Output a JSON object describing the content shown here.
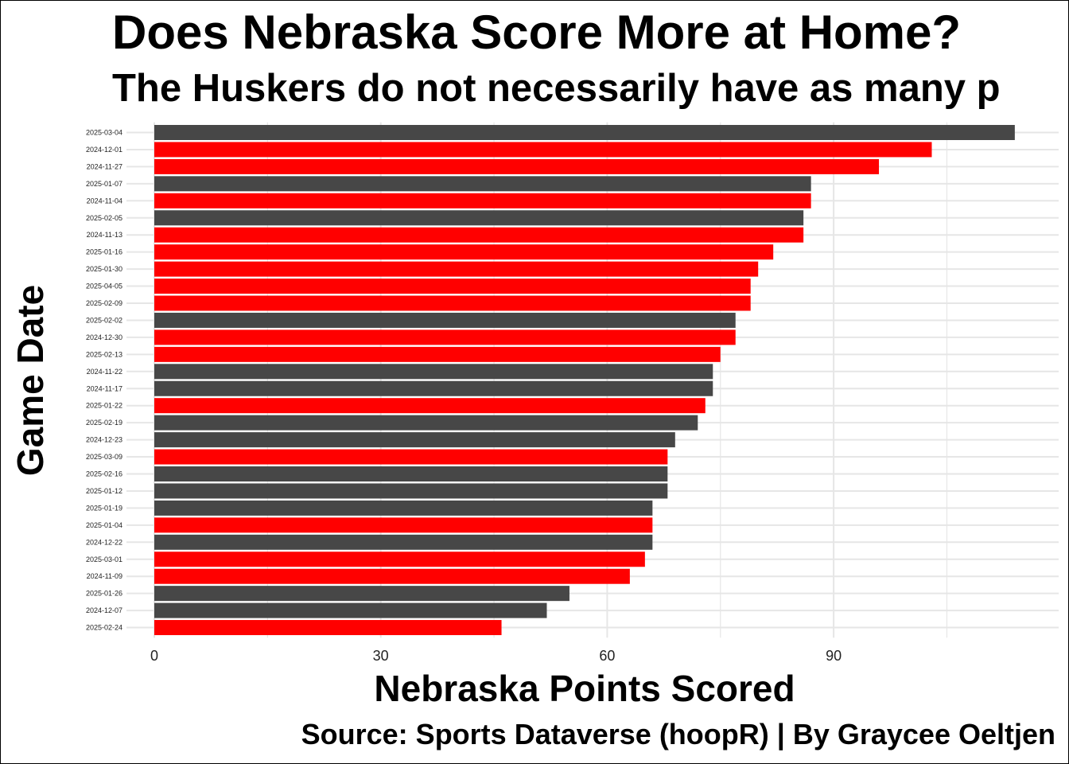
{
  "chart_data": {
    "type": "bar",
    "orientation": "horizontal",
    "title": "Does Nebraska Score More at Home?",
    "subtitle": "The Huskers do not necessarily have as many p",
    "xlabel": "Nebraska Points Scored",
    "ylabel": "Game Date",
    "caption": "Source: Sports Dataverse (hoopR) | By Graycee Oeltjen",
    "xlim": [
      0,
      119
    ],
    "xticks": [
      0,
      30,
      60,
      90
    ],
    "grid": true,
    "legend": "none",
    "colors": {
      "red": "#ff0000",
      "gray": "#474747"
    },
    "categories": [
      "2025-03-04",
      "2024-12-01",
      "2024-11-27",
      "2025-01-07",
      "2024-11-04",
      "2025-02-05",
      "2024-11-13",
      "2025-01-16",
      "2025-01-30",
      "2025-04-05",
      "2025-02-09",
      "2025-02-02",
      "2024-12-30",
      "2025-02-13",
      "2024-11-22",
      "2024-11-17",
      "2025-01-22",
      "2025-02-19",
      "2024-12-23",
      "2025-03-09",
      "2025-02-16",
      "2025-01-12",
      "2025-01-19",
      "2025-01-04",
      "2024-12-22",
      "2025-03-01",
      "2024-11-09",
      "2025-01-26",
      "2024-12-07",
      "2025-02-24"
    ],
    "values": [
      114,
      103,
      96,
      87,
      87,
      86,
      86,
      82,
      80,
      79,
      79,
      77,
      77,
      75,
      74,
      74,
      73,
      72,
      69,
      68,
      68,
      68,
      66,
      66,
      66,
      65,
      63,
      55,
      52,
      46
    ],
    "bar_colors": [
      "gray",
      "red",
      "red",
      "gray",
      "red",
      "gray",
      "red",
      "red",
      "red",
      "red",
      "red",
      "gray",
      "red",
      "red",
      "gray",
      "gray",
      "red",
      "gray",
      "gray",
      "red",
      "gray",
      "gray",
      "gray",
      "red",
      "gray",
      "red",
      "red",
      "gray",
      "gray",
      "red"
    ]
  }
}
